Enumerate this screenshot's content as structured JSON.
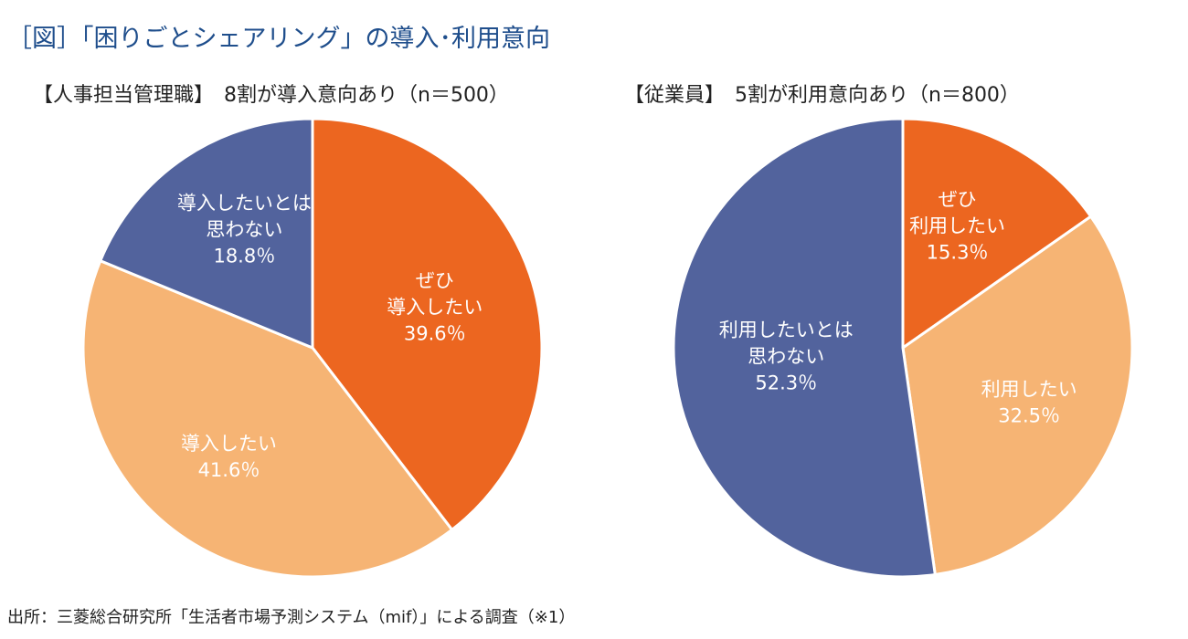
{
  "title": "［図］「困りごとシェアリング」の導入･利用意向",
  "source": "出所：三菱総合研究所「生活者市場予測システム（mif）」による調査（※1）",
  "colors": {
    "strong_yes": "#ec6620",
    "yes": "#f6b474",
    "no": "#52639d",
    "title": "#1f4e8c"
  },
  "chart_data": [
    {
      "type": "pie",
      "title": "【人事担当管理職】　8割が導入意向あり（n＝500）",
      "start": "12 o'clock, clockwise",
      "slices": [
        {
          "label_lines": [
            "ぜひ",
            "導入したい"
          ],
          "value": 39.6,
          "value_label": "39.6％",
          "color": "#ec6620"
        },
        {
          "label_lines": [
            "導入したい"
          ],
          "value": 41.6,
          "value_label": "41.6％",
          "color": "#f6b474"
        },
        {
          "label_lines": [
            "導入したいとは",
            "思わない"
          ],
          "value": 18.8,
          "value_label": "18.8％",
          "color": "#52639d"
        }
      ]
    },
    {
      "type": "pie",
      "title": "【従業員】　5割が利用意向あり（n＝800）",
      "start": "12 o'clock, clockwise",
      "slices": [
        {
          "label_lines": [
            "ぜひ",
            "利用したい"
          ],
          "value": 15.3,
          "value_label": "15.3％",
          "color": "#ec6620"
        },
        {
          "label_lines": [
            "利用したい"
          ],
          "value": 32.5,
          "value_label": "32.5％",
          "color": "#f6b474"
        },
        {
          "label_lines": [
            "利用したいとは",
            "思わない"
          ],
          "value": 52.3,
          "value_label": "52.3％",
          "color": "#52639d"
        }
      ]
    }
  ]
}
